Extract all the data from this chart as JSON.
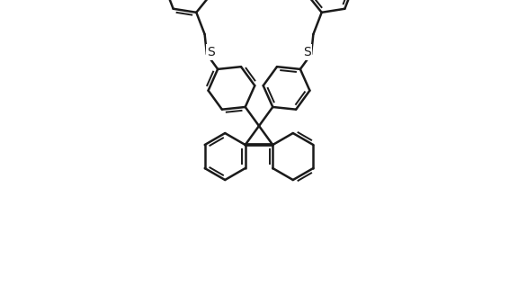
{
  "bg": "#ffffff",
  "lc": "#1a1a1a",
  "lw": 1.8,
  "lw_dbl": 1.4,
  "font_size": 10,
  "figsize": [
    5.76,
    3.38
  ],
  "dpi": 100,
  "bl": 26
}
